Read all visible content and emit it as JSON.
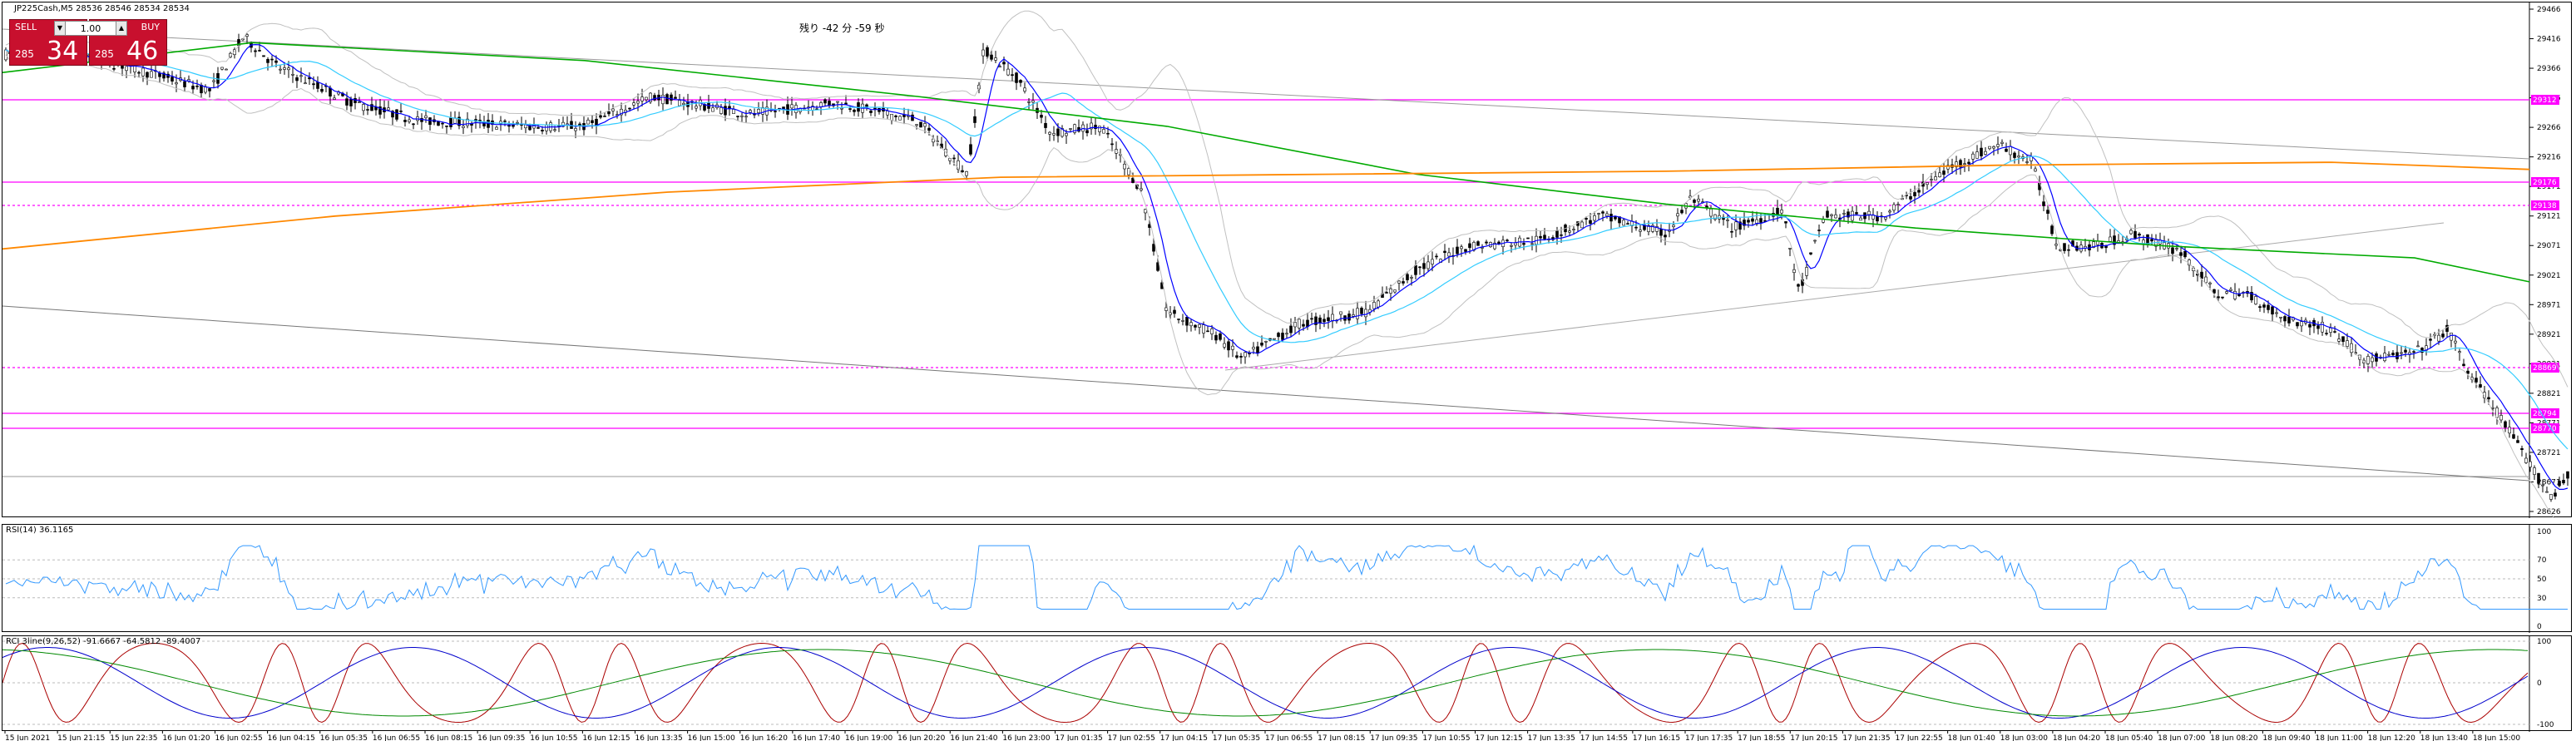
{
  "header": {
    "symbol_line": "JP225Cash,M5  28536 28546 28534 28534",
    "countdown": "残り -42 分 -59 秒"
  },
  "trade_panel": {
    "sell_label": "SELL",
    "buy_label": "BUY",
    "lot": "1.00",
    "sell_small": "285",
    "sell_big": "34",
    "buy_small": "285",
    "buy_big": "46"
  },
  "price_axis": {
    "ticks": [
      "29466",
      "29416",
      "29366",
      "29316",
      "29266",
      "29216",
      "29171",
      "29121",
      "29071",
      "29021",
      "28971",
      "28921",
      "28871",
      "28821",
      "28771",
      "28721",
      "28671",
      "28626"
    ]
  },
  "price_badges": [
    {
      "label": "29312",
      "color": "#ff00ff"
    },
    {
      "label": "29176",
      "color": "#ff00ff"
    },
    {
      "label": "29138",
      "color": "#ff00ff"
    },
    {
      "label": "28869",
      "color": "#ff00ff"
    },
    {
      "label": "28794",
      "color": "#ff00ff"
    },
    {
      "label": "28770",
      "color": "#ff00ff"
    }
  ],
  "time_axis": {
    "labels": [
      "15 Jun 2021",
      "15 Jun 21:15",
      "15 Jun 22:35",
      "16 Jun 01:20",
      "16 Jun 02:55",
      "16 Jun 04:15",
      "16 Jun 05:35",
      "16 Jun 06:55",
      "16 Jun 08:15",
      "16 Jun 09:35",
      "16 Jun 10:55",
      "16 Jun 12:15",
      "16 Jun 13:35",
      "16 Jun 15:00",
      "16 Jun 16:20",
      "16 Jun 17:40",
      "16 Jun 19:00",
      "16 Jun 20:20",
      "16 Jun 21:40",
      "16 Jun 23:00",
      "17 Jun 01:35",
      "17 Jun 02:55",
      "17 Jun 04:15",
      "17 Jun 05:35",
      "17 Jun 06:55",
      "17 Jun 08:15",
      "17 Jun 09:35",
      "17 Jun 10:55",
      "17 Jun 12:15",
      "17 Jun 13:35",
      "17 Jun 14:55",
      "17 Jun 16:15",
      "17 Jun 17:35",
      "17 Jun 18:55",
      "17 Jun 20:15",
      "17 Jun 21:35",
      "17 Jun 22:55",
      "18 Jun 01:40",
      "18 Jun 03:00",
      "18 Jun 04:20",
      "18 Jun 05:40",
      "18 Jun 07:00",
      "18 Jun 08:20",
      "18 Jun 09:40",
      "18 Jun 11:00",
      "18 Jun 12:20",
      "18 Jun 13:40",
      "18 Jun 15:00"
    ]
  },
  "rsi": {
    "label": "RSI(14) 36.1165",
    "ticks": [
      "100",
      "70",
      "50",
      "30",
      "0"
    ]
  },
  "rci": {
    "label": "RCI 3line(9,26,52) -91.6667 -64.5812 -89.4007",
    "ticks": [
      "100",
      "0",
      "-100"
    ]
  },
  "colors": {
    "candle": "#000000",
    "ma_fast": "#0000ff",
    "ma_mid": "#33ccff",
    "ma_green": "#00aa00",
    "ma_orange": "#ff8800",
    "bollinger": "#c0c0c0",
    "hline": "#ff00ff",
    "rsi_line": "#3399ff",
    "rci_short": "#aa0000",
    "rci_mid": "#0000cc",
    "rci_long": "#008800"
  }
}
